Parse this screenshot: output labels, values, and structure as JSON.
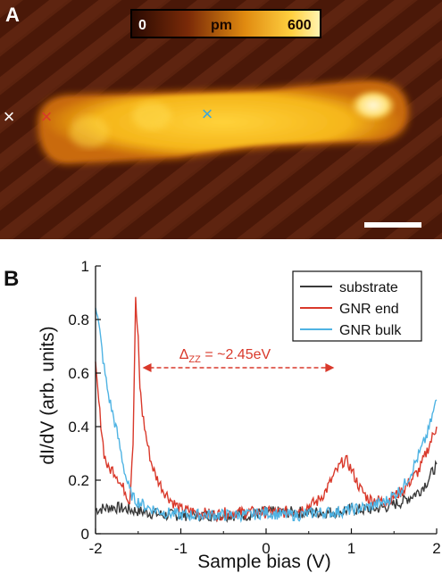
{
  "panel_a": {
    "label": "A",
    "colorbar": {
      "min_label": "0",
      "unit_label": "pm",
      "max_label": "600"
    },
    "markers": [
      {
        "symbol": "×",
        "color": "#ffffff"
      },
      {
        "symbol": "×",
        "color": "#d9392b"
      },
      {
        "symbol": "×",
        "color": "#3ea7d9"
      }
    ]
  },
  "chart_data": {
    "type": "line",
    "panel_label": "B",
    "xlabel": "Sample bias (V)",
    "ylabel": "dI/dV (arb. units)",
    "xlim": [
      -2,
      2
    ],
    "ylim": [
      0,
      1
    ],
    "xticks": [
      "-2",
      "-1",
      "0",
      "1",
      "2"
    ],
    "yticks": [
      "0",
      "0.2",
      "0.4",
      "0.6",
      "0.8",
      "1"
    ],
    "legend_position": "top-right",
    "annotation": {
      "text_prefix": "Δ",
      "text_sub": "ZZ",
      "text_suffix": " = ~2.45eV",
      "x_start": -1.45,
      "x_end": 0.8,
      "y": 0.62,
      "color": "#d9392b"
    },
    "series": [
      {
        "name": "substrate",
        "color": "#3a3a3a",
        "x": [
          -2.0,
          -1.8,
          -1.6,
          -1.4,
          -1.2,
          -1.0,
          -0.8,
          -0.6,
          -0.4,
          -0.2,
          0.0,
          0.2,
          0.4,
          0.6,
          0.8,
          1.0,
          1.2,
          1.4,
          1.6,
          1.8,
          1.9,
          2.0
        ],
        "y": [
          0.09,
          0.1,
          0.09,
          0.08,
          0.07,
          0.07,
          0.07,
          0.07,
          0.07,
          0.07,
          0.08,
          0.08,
          0.08,
          0.08,
          0.08,
          0.09,
          0.09,
          0.1,
          0.12,
          0.16,
          0.2,
          0.26
        ]
      },
      {
        "name": "GNR end",
        "color": "#d9392b",
        "x": [
          -2.0,
          -1.95,
          -1.9,
          -1.85,
          -1.8,
          -1.75,
          -1.7,
          -1.65,
          -1.6,
          -1.56,
          -1.53,
          -1.5,
          -1.48,
          -1.45,
          -1.4,
          -1.35,
          -1.3,
          -1.2,
          -1.1,
          -1.0,
          -0.8,
          -0.6,
          -0.4,
          -0.2,
          0.0,
          0.2,
          0.4,
          0.6,
          0.7,
          0.8,
          0.9,
          0.95,
          1.0,
          1.1,
          1.2,
          1.4,
          1.6,
          1.8,
          1.9,
          2.0
        ],
        "y": [
          0.62,
          0.45,
          0.3,
          0.24,
          0.24,
          0.22,
          0.18,
          0.16,
          0.12,
          0.35,
          0.87,
          0.72,
          0.55,
          0.45,
          0.35,
          0.27,
          0.22,
          0.16,
          0.12,
          0.09,
          0.08,
          0.07,
          0.08,
          0.08,
          0.08,
          0.08,
          0.09,
          0.12,
          0.16,
          0.22,
          0.27,
          0.27,
          0.24,
          0.17,
          0.13,
          0.12,
          0.16,
          0.24,
          0.32,
          0.4
        ]
      },
      {
        "name": "GNR bulk",
        "color": "#4fb3e3",
        "x": [
          -2.0,
          -1.95,
          -1.9,
          -1.85,
          -1.8,
          -1.75,
          -1.7,
          -1.65,
          -1.6,
          -1.55,
          -1.5,
          -1.45,
          -1.4,
          -1.3,
          -1.2,
          -1.0,
          -0.8,
          -0.6,
          -0.4,
          -0.2,
          0.0,
          0.2,
          0.4,
          0.6,
          0.8,
          1.0,
          1.2,
          1.4,
          1.6,
          1.7,
          1.8,
          1.9,
          2.0
        ],
        "y": [
          0.86,
          0.75,
          0.62,
          0.52,
          0.45,
          0.38,
          0.3,
          0.22,
          0.16,
          0.13,
          0.12,
          0.11,
          0.1,
          0.09,
          0.08,
          0.07,
          0.07,
          0.07,
          0.07,
          0.07,
          0.08,
          0.07,
          0.07,
          0.08,
          0.08,
          0.09,
          0.1,
          0.12,
          0.17,
          0.23,
          0.3,
          0.38,
          0.5
        ]
      }
    ]
  }
}
